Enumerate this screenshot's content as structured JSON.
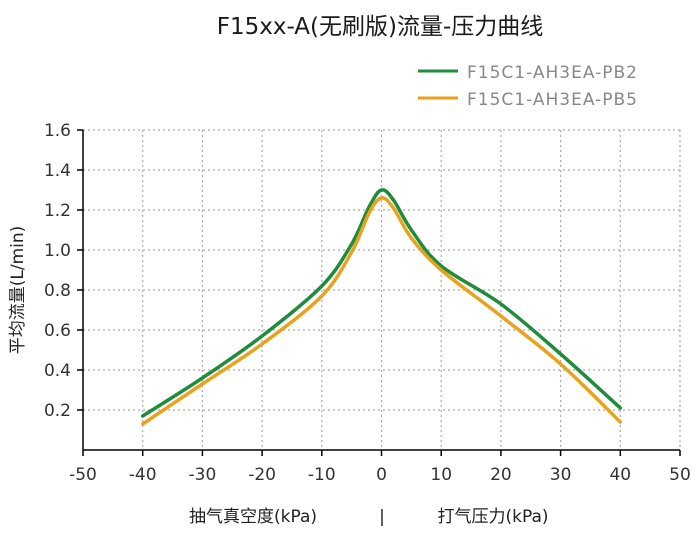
{
  "chart_data": {
    "type": "line",
    "title": "F15xx-A(无刷版)流量-压力曲线",
    "ylabel": "平均流量(L/min)",
    "xlabel_left": "抽气真空度(kPa)",
    "xlabel_separator": "|",
    "xlabel_right": "打气压力(kPa)",
    "xlim": [
      -50,
      50
    ],
    "ylim": [
      0,
      1.6
    ],
    "xticks": [
      -50,
      -40,
      -30,
      -20,
      -10,
      0,
      10,
      20,
      30,
      40,
      50
    ],
    "yticks": [
      0.2,
      0.4,
      0.6,
      0.8,
      1.0,
      1.2,
      1.4,
      1.6
    ],
    "ytick_labels": [
      "0.2",
      "0.4",
      "0.6",
      "0.8",
      "1.0",
      "1.2",
      "1.4",
      "1.6"
    ],
    "grid": true,
    "legend_position": "top-right",
    "series": [
      {
        "name": "F15C1-AH3EA-PB2",
        "color": "#1e8c3a",
        "x": [
          -40,
          -30,
          -20,
          -10,
          -5,
          -2,
          0,
          2,
          5,
          10,
          20,
          30,
          40
        ],
        "y": [
          0.17,
          0.36,
          0.57,
          0.82,
          1.03,
          1.22,
          1.3,
          1.25,
          1.1,
          0.92,
          0.73,
          0.48,
          0.21
        ]
      },
      {
        "name": "F15C1-AH3EA-PB5",
        "color": "#e8a21e",
        "x": [
          -40,
          -30,
          -20,
          -10,
          -5,
          -2,
          0,
          2,
          5,
          10,
          20,
          30,
          40
        ],
        "y": [
          0.13,
          0.33,
          0.53,
          0.77,
          0.99,
          1.19,
          1.26,
          1.21,
          1.06,
          0.9,
          0.67,
          0.43,
          0.14
        ]
      }
    ]
  }
}
